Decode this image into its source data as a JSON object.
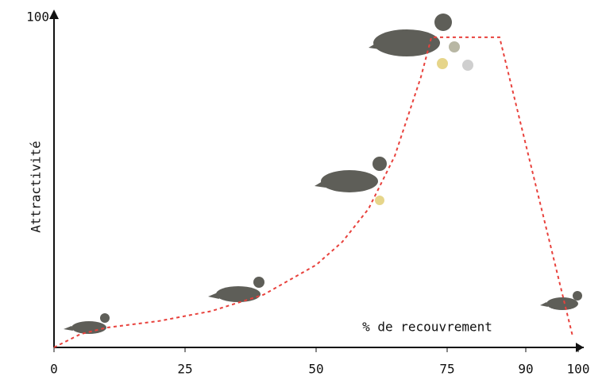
{
  "chart_data": {
    "type": "line",
    "x_label": "% de recouvrement",
    "y_label": "Attractivité",
    "x": [
      0,
      5,
      10,
      20,
      30,
      40,
      50,
      55,
      60,
      65,
      70,
      72,
      85,
      99
    ],
    "values": [
      0,
      4,
      6,
      8,
      11,
      16,
      25,
      32,
      42,
      58,
      82,
      94,
      94,
      3
    ],
    "color": "#e8413c",
    "xlim": [
      0,
      100
    ],
    "ylim": [
      0,
      100
    ],
    "xticks": [
      0,
      25,
      50,
      75,
      90,
      100
    ],
    "yticks": [
      100
    ]
  }
}
